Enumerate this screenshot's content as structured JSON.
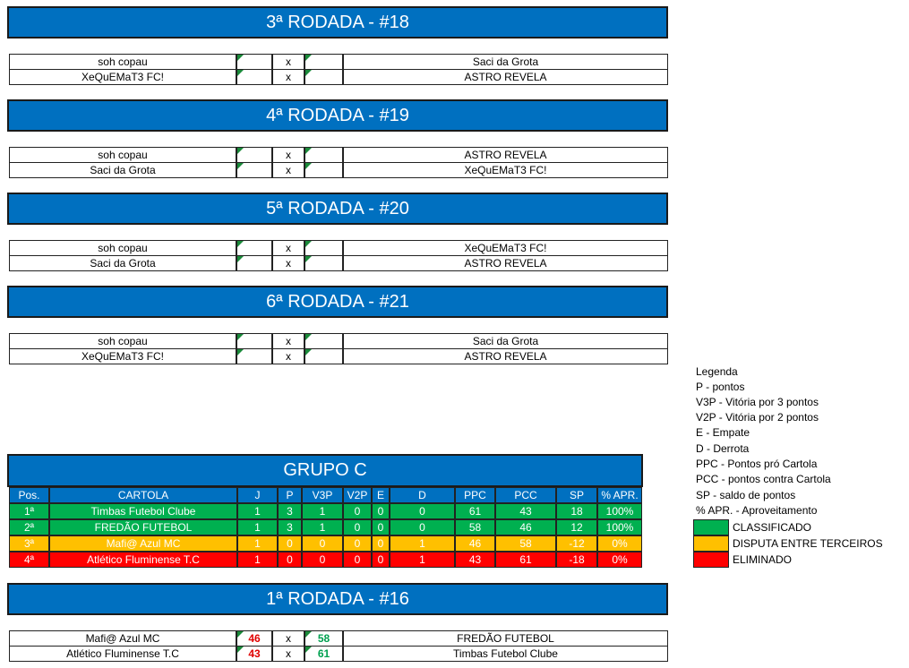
{
  "rounds_top": [
    {
      "title": "3ª RODADA - #18",
      "matches": [
        {
          "home": "soh copau",
          "vs": "x",
          "away": "Saci da Grota"
        },
        {
          "home": "XeQuEMaT3 FC!",
          "vs": "x",
          "away": "ASTRO REVELA"
        }
      ]
    },
    {
      "title": "4ª RODADA - #19",
      "matches": [
        {
          "home": "soh copau",
          "vs": "x",
          "away": "ASTRO REVELA"
        },
        {
          "home": "Saci da Grota",
          "vs": "x",
          "away": "XeQuEMaT3 FC!"
        }
      ]
    },
    {
      "title": "5ª RODADA - #20",
      "matches": [
        {
          "home": "soh copau",
          "vs": "x",
          "away": "XeQuEMaT3 FC!"
        },
        {
          "home": "Saci da Grota",
          "vs": "x",
          "away": "ASTRO REVELA"
        }
      ]
    },
    {
      "title": "6ª RODADA - #21",
      "matches": [
        {
          "home": "soh copau",
          "vs": "x",
          "away": "Saci da Grota"
        },
        {
          "home": "XeQuEMaT3 FC!",
          "vs": "x",
          "away": "ASTRO REVELA"
        }
      ]
    }
  ],
  "group": {
    "title": "GRUPO C",
    "columns": [
      "Pos.",
      "CARTOLA",
      "J",
      "P",
      "V3P",
      "V2P",
      "E",
      "D",
      "PPC",
      "PCC",
      "SP",
      "% APR."
    ],
    "rows": [
      [
        "1ª",
        "Timbas Futebol Clube",
        1,
        3,
        1,
        0,
        0,
        0,
        61,
        43,
        18,
        "100%"
      ],
      [
        "2ª",
        "FREDÃO FUTEBOL",
        1,
        3,
        1,
        0,
        0,
        0,
        58,
        46,
        12,
        "100%"
      ],
      [
        "3ª",
        "Mafi@ Azul MC",
        1,
        0,
        0,
        0,
        0,
        1,
        46,
        58,
        -12,
        "0%"
      ],
      [
        "4ª",
        "Atlético Fluminense T.C",
        1,
        0,
        0,
        0,
        0,
        1,
        43,
        61,
        -18,
        "0%"
      ]
    ],
    "row_colors": [
      "#00b050",
      "#00b050",
      "#ffc000",
      "#ff0000"
    ]
  },
  "rounds_bottom": [
    {
      "title": "1ª RODADA - #16",
      "matches": [
        {
          "home": "Mafi@ Azul MC",
          "home_score": 46,
          "vs": "x",
          "away_score": 58,
          "away": "FREDÃO FUTEBOL"
        },
        {
          "home": "Atlético Fluminense T.C",
          "home_score": 43,
          "vs": "x",
          "away_score": 61,
          "away": "Timbas Futebol Clube"
        }
      ]
    }
  ],
  "legend": {
    "title": "Legenda",
    "items": [
      "P - pontos",
      "V3P - Vitória por 3 pontos",
      "V2P - Vitória por 2 pontos",
      "E - Empate",
      "D - Derrota",
      "PPC - Pontos pró Cartola",
      "PCC - pontos contra Cartola",
      "SP - saldo de pontos",
      "% APR. - Aproveitamento"
    ],
    "status": [
      {
        "label": "CLASSIFICADO",
        "color": "#00b050"
      },
      {
        "label": "DISPUTA ENTRE TERCEIROS",
        "color": "#ffc000"
      },
      {
        "label": "ELIMINADO",
        "color": "#ff0000"
      }
    ]
  }
}
